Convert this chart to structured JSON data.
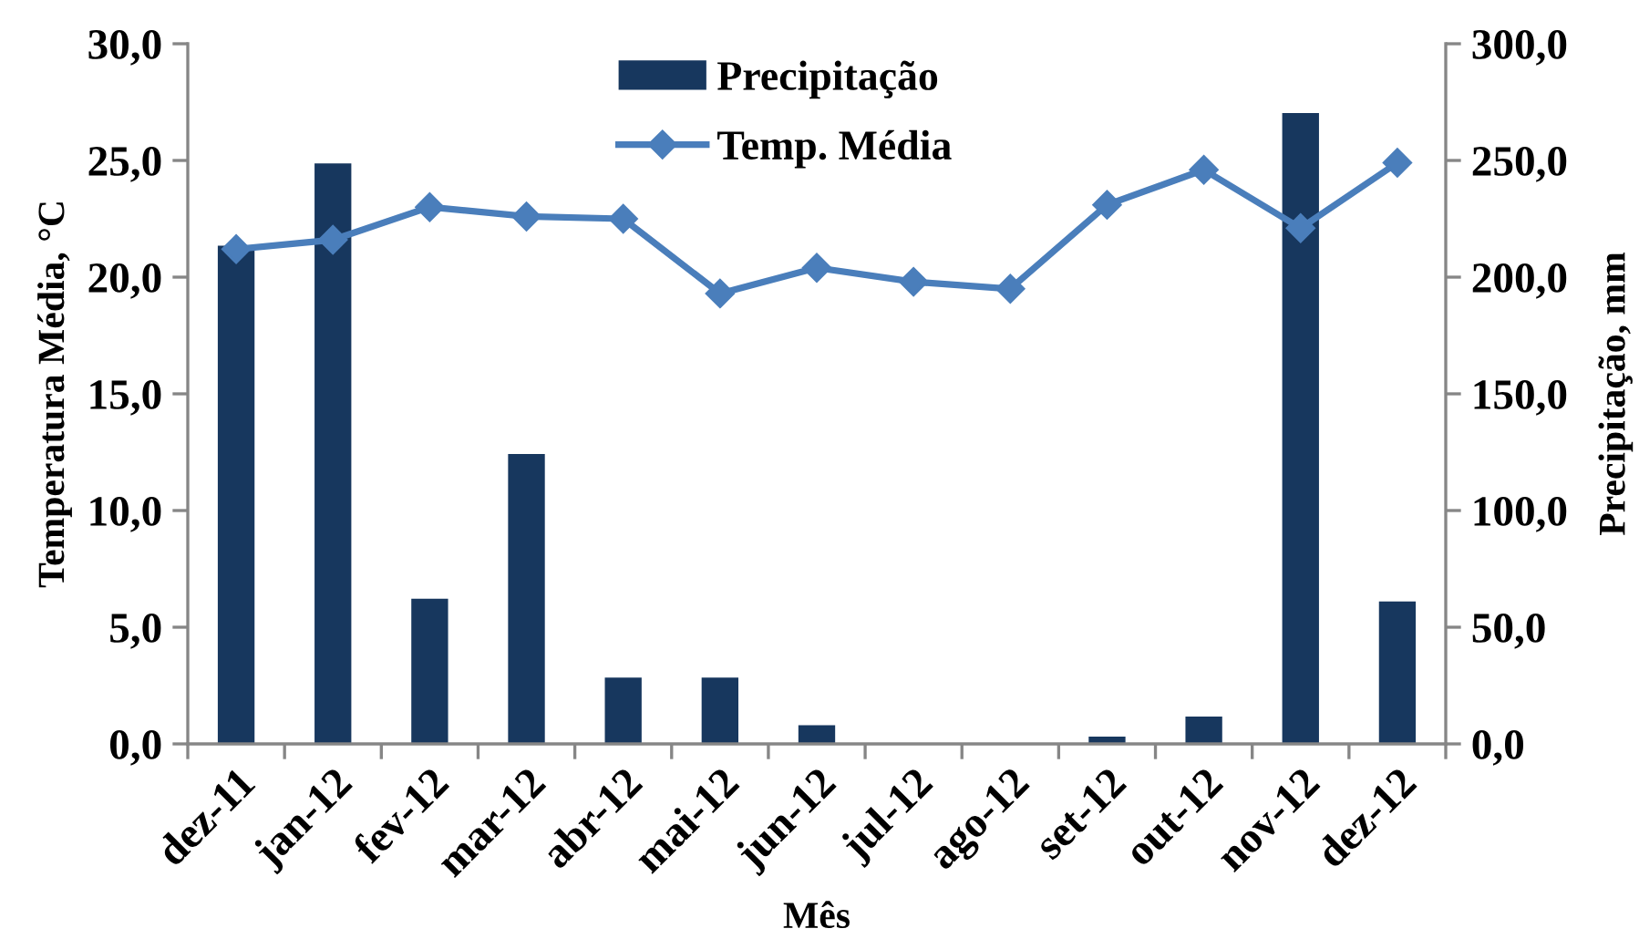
{
  "chart_data": {
    "type": "bar",
    "xlabel": "Mês",
    "ylabel": "Temperatura Média, °C",
    "y2label": "Precipitação, mm",
    "categories": [
      "dez-11",
      "jan-12",
      "fev-12",
      "mar-12",
      "abr-12",
      "mai-12",
      "jun-12",
      "jul-12",
      "ago-12",
      "set-12",
      "out-12",
      "nov-12",
      "dez-12"
    ],
    "series": [
      {
        "name": "Precipitação",
        "axis": "y2",
        "color": "#17375e",
        "values": [
          213.5,
          248.7,
          62.2,
          124.2,
          28.4,
          28.4,
          8.0,
          0,
          0,
          3.1,
          11.7,
          270.3,
          61.0
        ]
      },
      {
        "name": "Temp. Média",
        "type": "line",
        "axis": "y",
        "color": "#4a7ebb",
        "marker": "diamond",
        "line_style": "solid",
        "values": [
          21.2,
          21.6,
          23.0,
          22.6,
          22.5,
          19.3,
          20.4,
          19.8,
          19.5,
          23.1,
          24.6,
          22.1,
          24.9
        ]
      }
    ],
    "ylim": [
      0,
      30
    ],
    "yticks": [
      {
        "value": 0,
        "label": "0,0"
      },
      {
        "value": 5,
        "label": "5,0"
      },
      {
        "value": 10,
        "label": "10,0"
      },
      {
        "value": 15,
        "label": "15,0"
      },
      {
        "value": 20,
        "label": "20,0"
      },
      {
        "value": 25,
        "label": "25,0"
      },
      {
        "value": 30,
        "label": "30,0"
      }
    ],
    "y2lim": [
      0,
      300
    ],
    "y2ticks": [
      {
        "value": 0,
        "label": "0,0"
      },
      {
        "value": 50,
        "label": "50,0"
      },
      {
        "value": 100,
        "label": "100,0"
      },
      {
        "value": 150,
        "label": "150,0"
      },
      {
        "value": 200,
        "label": "200,0"
      },
      {
        "value": 250,
        "label": "250,0"
      },
      {
        "value": 300,
        "label": "300,0"
      }
    ],
    "legend": "top",
    "grid": false
  }
}
